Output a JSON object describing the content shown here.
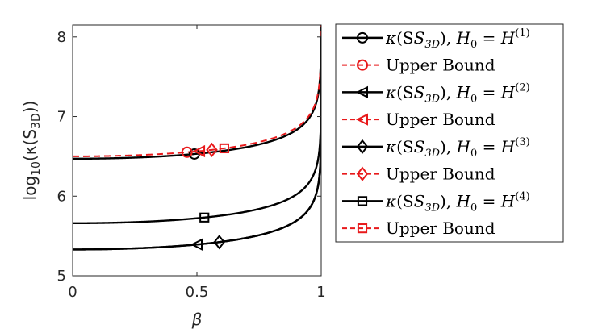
{
  "chart_data": {
    "type": "line",
    "xlabel": "β",
    "ylabel_parts": {
      "prefix": "log",
      "sub": "10",
      "open": "(κ(S",
      "sub2": "3D",
      "close": "))"
    },
    "xlim": [
      0,
      1
    ],
    "ylim": [
      5,
      8.15
    ],
    "xticks": [
      0,
      0.5,
      1
    ],
    "yticks": [
      5,
      6,
      7,
      8
    ],
    "xtick_labels": [
      "0",
      "0.5",
      "1"
    ],
    "ytick_labels": [
      "5",
      "6",
      "7",
      "8"
    ],
    "grid": false,
    "legend_position": "outside-right",
    "series": [
      {
        "kind": "kappa",
        "color": "#000000",
        "dash": "solid",
        "marker": "circle",
        "y0": 6.47,
        "marker_x": 0.49,
        "legend": {
          "main": "κ(S",
          "sub": "3D",
          "mid": "), H",
          "sub2": "0",
          "eq": " = H",
          "sup": "(1)"
        }
      },
      {
        "kind": "bound",
        "color": "#e8191b",
        "dash": "dashed",
        "marker": "circle",
        "y0": 6.5,
        "marker_x": 0.46,
        "legend": {
          "main": "Upper Bound"
        }
      },
      {
        "kind": "kappa",
        "color": "#000000",
        "dash": "solid",
        "marker": "triangle-left",
        "y0": 5.33,
        "marker_x": 0.5,
        "legend": {
          "main": "κ(S",
          "sub": "3D",
          "mid": "), H",
          "sub2": "0",
          "eq": " = H",
          "sup": "(2)"
        }
      },
      {
        "kind": "bound",
        "color": "#e8191b",
        "dash": "dashed",
        "marker": "triangle-left",
        "y0": 6.5,
        "marker_x": 0.51,
        "legend": {
          "main": "Upper Bound"
        }
      },
      {
        "kind": "kappa",
        "color": "#000000",
        "dash": "solid",
        "marker": "diamond",
        "y0": 5.33,
        "marker_x": 0.59,
        "legend": {
          "main": "κ(S",
          "sub": "3D",
          "mid": "), H",
          "sub2": "0",
          "eq": " = H",
          "sup": "(3)"
        }
      },
      {
        "kind": "bound",
        "color": "#e8191b",
        "dash": "dashed",
        "marker": "diamond",
        "y0": 6.5,
        "marker_x": 0.56,
        "legend": {
          "main": "Upper Bound"
        }
      },
      {
        "kind": "kappa",
        "color": "#000000",
        "dash": "solid",
        "marker": "square",
        "y0": 5.66,
        "marker_x": 0.53,
        "legend": {
          "main": "κ(S",
          "sub": "3D",
          "mid": "), H",
          "sub2": "0",
          "eq": " = H",
          "sup": "(4)"
        }
      },
      {
        "kind": "bound",
        "color": "#e8191b",
        "dash": "dashed",
        "marker": "square",
        "y0": 6.5,
        "marker_x": 0.61,
        "legend": {
          "main": "Upper Bound"
        }
      }
    ]
  }
}
